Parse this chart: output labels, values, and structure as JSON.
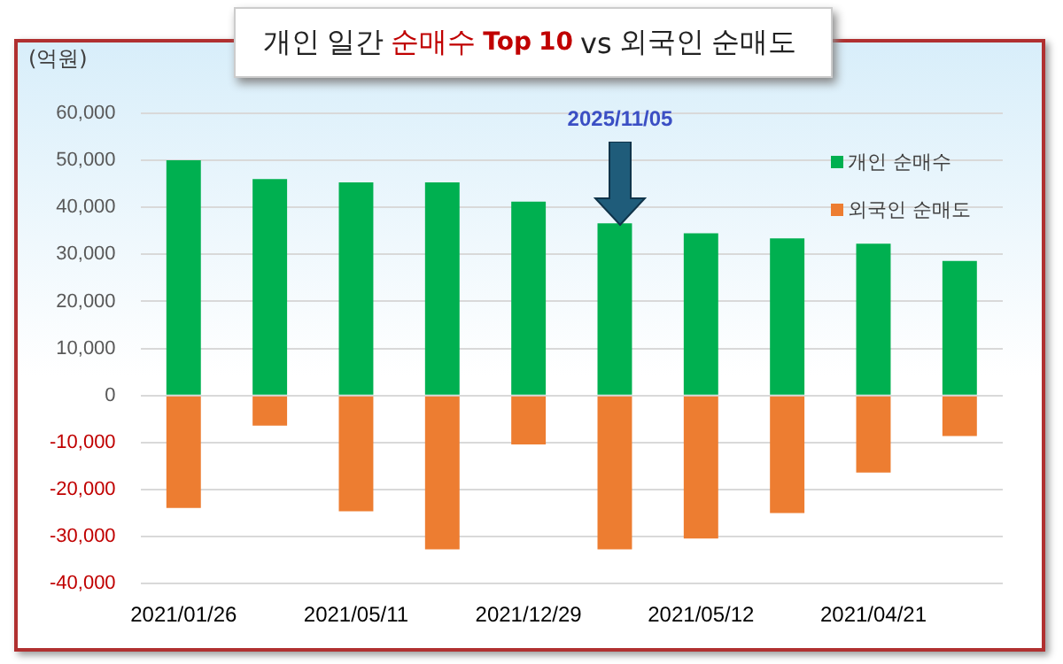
{
  "chart_data": {
    "type": "bar",
    "title": "개인 일간 순매수 Top 10 vs 외국인 순매도",
    "ylabel": "(억원)",
    "categories": [
      "2021/01/26",
      null,
      "2021/05/11",
      null,
      "2021/12/29",
      null,
      "2021/05/12",
      null,
      "2021/04/21",
      null
    ],
    "series": [
      {
        "name": "개인 순매수",
        "color": "#00b050",
        "values": [
          50000,
          46000,
          45300,
          45300,
          41200,
          36600,
          34500,
          33400,
          32300,
          28600
        ]
      },
      {
        "name": "외국인 순매도",
        "color": "#ed7d31",
        "values": [
          -23900,
          -6400,
          -24600,
          -32700,
          -10400,
          -32700,
          -30400,
          -25000,
          -16400,
          -8600
        ]
      }
    ],
    "ylim": [
      -40000,
      60000
    ],
    "stacked": true,
    "yticks": [
      {
        "value": -40000,
        "label": "-40,000"
      },
      {
        "value": -30000,
        "label": "-30,000"
      },
      {
        "value": -20000,
        "label": "-20,000"
      },
      {
        "value": -10000,
        "label": "-10,000"
      },
      0,
      {
        "value": 10000,
        "label": "10,000"
      },
      {
        "value": 20000,
        "label": "20,000"
      },
      {
        "value": 30000,
        "label": "30,000"
      },
      {
        "value": 40000,
        "label": "40,000"
      },
      {
        "value": 50000,
        "label": "50,000"
      },
      {
        "value": 60000,
        "label": "60,000"
      }
    ],
    "grid": "y",
    "legend": "top right",
    "annotations": [
      "2025/11/05"
    ]
  }
}
